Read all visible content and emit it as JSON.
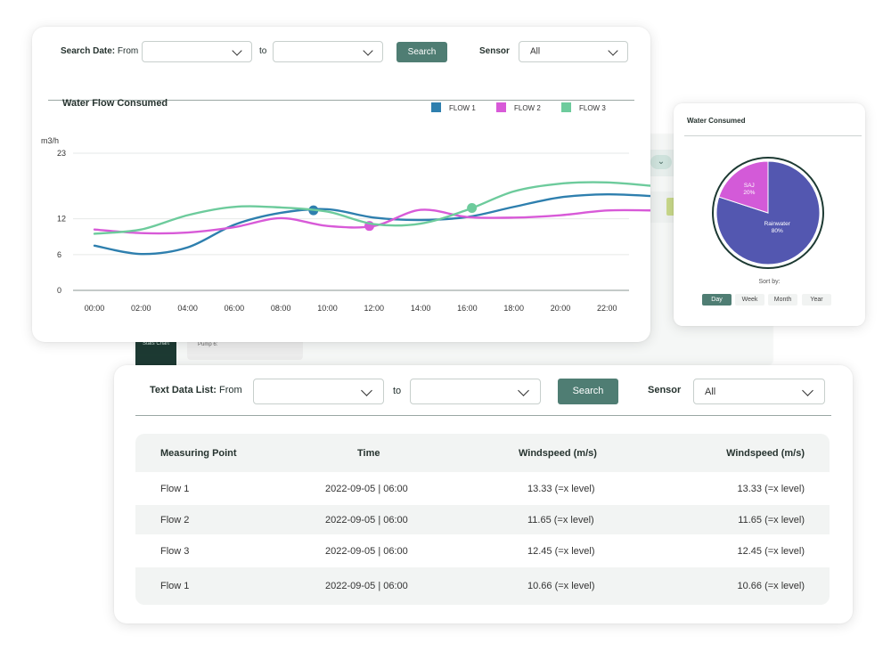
{
  "background": {
    "pill_icon": "chevron-down-icon",
    "dark_card_label": "Stats Chart",
    "pump_label": "Pump 6:"
  },
  "chart_panel": {
    "filter": {
      "label_bold": "Search Date:",
      "label_rest": "From",
      "from_value": "",
      "to_label": "to",
      "to_value": "",
      "search_label": "Search",
      "sensor_label": "Sensor",
      "sensor_value": "All"
    },
    "title": "Water Flow Consumed",
    "chart_data": {
      "type": "line",
      "title": "Water Flow Consumed",
      "ylabel": "m3/h",
      "ylim": [
        0,
        23
      ],
      "y_ticks": [
        "23",
        "12",
        "6",
        "0"
      ],
      "x_ticks": [
        "00:00",
        "02:00",
        "04:00",
        "06:00",
        "08:00",
        "10:00",
        "12:00",
        "14:00",
        "16:00",
        "18:00",
        "20:00",
        "22:00"
      ],
      "legend_position": "top-right",
      "grid": true,
      "series": [
        {
          "name": "FLOW 1",
          "color": "#2e7fae",
          "x": [
            0,
            1,
            2,
            3,
            4,
            5,
            6,
            7,
            8,
            9,
            10,
            11,
            12
          ],
          "values": [
            7.5,
            6.1,
            7.2,
            11,
            13,
            13.6,
            12.2,
            11.8,
            12.3,
            14,
            15.6,
            16.1,
            15.8
          ],
          "marker_index": 4.7
        },
        {
          "name": "FLOW 2",
          "color": "#d85ad8",
          "x": [
            0,
            1,
            2,
            3,
            4,
            5,
            6,
            7,
            8,
            9,
            10,
            11,
            12
          ],
          "values": [
            10.2,
            9.6,
            9.7,
            10.6,
            12.1,
            10.8,
            10.8,
            13.5,
            12.3,
            12.2,
            12.6,
            13.4,
            13.4
          ],
          "marker_index": 5.9
        },
        {
          "name": "FLOW 3",
          "color": "#6dcb9c",
          "x": [
            0,
            1,
            2,
            3,
            4,
            5,
            6,
            7,
            8,
            9,
            10,
            11,
            12
          ],
          "values": [
            9.5,
            10.2,
            12.6,
            14,
            13.9,
            13.2,
            11.1,
            11.2,
            13.5,
            16.6,
            17.9,
            18.1,
            17.5
          ],
          "marker_index": 8.1
        }
      ]
    }
  },
  "pie_panel": {
    "title": "Water Consumed",
    "chart_data": {
      "type": "pie",
      "slices": [
        {
          "label": "Rainwater",
          "value": 80,
          "pct_text": "80%",
          "color": "#5357b0"
        },
        {
          "label": "SAJ",
          "value": 20,
          "pct_text": "20%",
          "color": "#d35ad8"
        }
      ]
    },
    "sort_label": "Sort by:",
    "sort_options": [
      "Day",
      "Week",
      "Month",
      "Year"
    ],
    "sort_active": "Day"
  },
  "table_panel": {
    "filter": {
      "label_bold": "Text Data List:",
      "label_rest": "From",
      "from_value": "",
      "to_label": "to",
      "to_value": "",
      "search_label": "Search",
      "sensor_label": "Sensor",
      "sensor_value": "All"
    },
    "columns": [
      "Measuring Point",
      "Time",
      "Windspeed (m/s)",
      "Windspeed (m/s)"
    ],
    "rows": [
      [
        "Flow 1",
        "2022-09-05 | 06:00",
        "13.33 (=x level)",
        "13.33 (=x level)"
      ],
      [
        "Flow 2",
        "2022-09-05 | 06:00",
        "11.65 (=x level)",
        "11.65 (=x level)"
      ],
      [
        "Flow 3",
        "2022-09-05 | 06:00",
        "12.45 (=x level)",
        "12.45 (=x level)"
      ],
      [
        "Flow 1",
        "2022-09-05 | 06:00",
        "10.66 (=x level)",
        "10.66 (=x level)"
      ]
    ]
  }
}
